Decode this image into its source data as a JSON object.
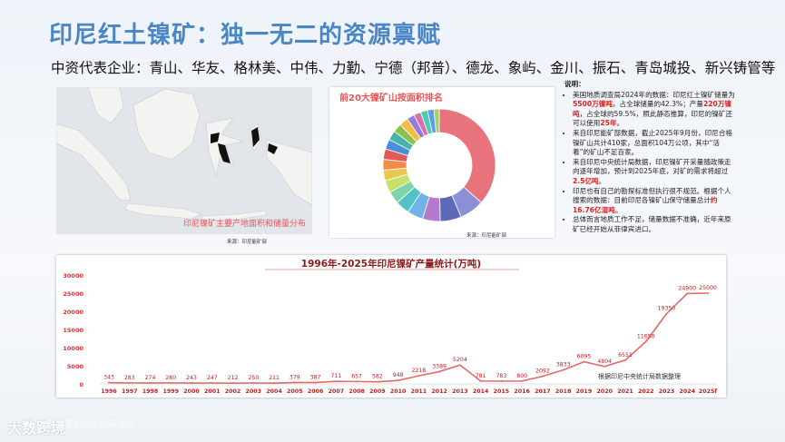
{
  "title": "印尼红土镍矿：独一无二的资源禀赋",
  "subtitle": "中资代表企业：青山、华友、格林美、中伟、力勤、宁德（邦普）、德龙、象屿、金川、振石、青岛城投、新兴铸管等",
  "map": {
    "caption": "印尼镍矿主要产地面积和储量分布",
    "source": "来源：印尼能矿部"
  },
  "donut": {
    "title": "前20大镍矿山按面积排名",
    "source": "来源：印尼能矿部",
    "colors": [
      "#e8737d",
      "#8a8fd6",
      "#5b6bb8",
      "#b57ad0",
      "#6fb3e8",
      "#52c2c8",
      "#7fd4a8",
      "#c7e06a",
      "#e8c84e",
      "#f08c48",
      "#e05a5a",
      "#4a90d9",
      "#46b5a8",
      "#8cc152",
      "#f6bb42",
      "#967adc",
      "#d770ad",
      "#48cfad",
      "#5d9cec",
      "#a0d468"
    ],
    "fractions": [
      0.36,
      0.07,
      0.06,
      0.05,
      0.045,
      0.04,
      0.035,
      0.035,
      0.03,
      0.03,
      0.03,
      0.028,
      0.027,
      0.025,
      0.025,
      0.022,
      0.02,
      0.02,
      0.018,
      0.015
    ]
  },
  "notes": {
    "head": "说明：",
    "items": [
      {
        "pre": "美国地质调查局2024年的数据：印尼红土镍矿储量为",
        "h1": "5500万镍吨",
        "mid": "，占全球储量的42.3%；产量",
        "h2": "220万镍吨",
        "post": "，占全球的59.5%，照此静态推算，印尼的镍矿还可以使用",
        "h3": "25年",
        "end": "。"
      },
      {
        "pre": "来自印尼能矿部数据，截止2025年9月份，印尼合格镍矿山共计410家，总面积104万公顷，其中“活着”的矿山不足百家。"
      },
      {
        "pre": "来自印尼中央统计局数据，印尼镍矿开采量随政策走向逐年增加，预计到2025年底，对矿的需求将超过",
        "h1": "2.5亿吨",
        "end": "。"
      },
      {
        "pre": "印尼也有自己的勘探标准但执行很不规范。根据个人搜索的数据：目前印尼各镍矿山保守储量总计",
        "h1": "约16.76亿湿吨",
        "end": "。"
      },
      {
        "pre": "总体而言地质工作不足，储量数据不准确，近年来原矿已经开始从菲律宾进口。"
      }
    ]
  },
  "chart_data": {
    "type": "line",
    "title": "1996年-2025年印尼镍矿产量统计(万吨)",
    "annotation": "根据印尼中央统计局数据整理",
    "x": [
      "1996",
      "1997",
      "1998",
      "1999",
      "2000",
      "2001",
      "2002",
      "2003",
      "2004",
      "2005",
      "2006",
      "2007",
      "2008",
      "2009",
      "2010",
      "2011",
      "2012",
      "2013",
      "2014",
      "2015",
      "2016",
      "2017",
      "2018",
      "2019",
      "2020",
      "2021",
      "2022",
      "2023",
      "2024",
      "2025f"
    ],
    "values": [
      343,
      283,
      274,
      280,
      243,
      247,
      212,
      250,
      211,
      379,
      387,
      711,
      657,
      582,
      948,
      2218,
      3389,
      5204,
      781,
      783,
      800,
      2092,
      3833,
      6095,
      4804,
      6551,
      11650,
      19350,
      24900,
      25000
    ],
    "data_labels": [
      "343",
      "283",
      "274",
      "280",
      "243",
      "247",
      "212",
      "250",
      "211",
      "379",
      "387",
      "711",
      "657",
      "582",
      "948",
      "2218",
      "3389",
      "5204",
      "781",
      "783",
      "800",
      "2092",
      "3833",
      "6095",
      "4804",
      "6551",
      "11650",
      "19350",
      "24900",
      "25000"
    ],
    "yticks": [
      0,
      5000,
      10000,
      15000,
      20000,
      25000,
      30000
    ],
    "ylim": [
      0,
      30000
    ],
    "color": "#e26a6a",
    "grid": false
  },
  "brand": {
    "name": "大数跨境",
    "watermark": "2025东南亚&北非出海峰会"
  }
}
